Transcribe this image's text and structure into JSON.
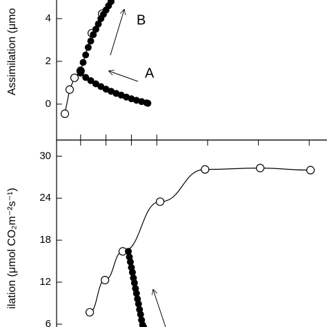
{
  "chart_data": [
    {
      "type": "line",
      "ylabel": "Assimilation (μmo",
      "xlim": [
        0,
        10.7
      ],
      "xticks": [
        1,
        2,
        3,
        4
      ],
      "ylim": [
        -1.68,
        4.87
      ],
      "yticks": [
        0,
        2,
        4
      ],
      "annotations": [
        "B",
        "A"
      ],
      "series": [
        {
          "marker": "open",
          "line": true,
          "color": "#000",
          "x": [
            0.38,
            0.57,
            0.76,
            1.0,
            1.44,
            1.85
          ],
          "values": [
            -0.45,
            0.68,
            1.23,
            1.55,
            3.32,
            4.23
          ]
        },
        {
          "marker": "filled",
          "line": false,
          "color": "#000",
          "x": [
            1.0,
            1.1,
            1.2,
            1.3,
            1.4,
            1.5,
            1.6,
            1.7,
            1.8,
            1.9,
            2.0,
            2.1,
            2.2
          ],
          "values": [
            1.6,
            1.95,
            2.3,
            2.65,
            2.95,
            3.25,
            3.5,
            3.75,
            4.0,
            4.2,
            4.4,
            4.6,
            4.8
          ]
        },
        {
          "marker": "filled",
          "line": false,
          "color": "#000",
          "x": [
            1.0,
            1.2,
            1.4,
            1.6,
            1.8,
            2.0,
            2.2,
            2.4,
            2.6,
            2.8,
            3.0,
            3.2,
            3.4,
            3.6,
            3.65
          ],
          "values": [
            1.45,
            1.25,
            1.1,
            0.95,
            0.82,
            0.7,
            0.6,
            0.5,
            0.42,
            0.33,
            0.25,
            0.18,
            0.12,
            0.06,
            0.04
          ]
        }
      ]
    },
    {
      "type": "line",
      "ylabel": "ilation (μmol CO₂m⁻²s⁻¹)",
      "xlim": [
        0,
        10.7
      ],
      "xticks": [
        1,
        2,
        3,
        4,
        6,
        8,
        10
      ],
      "ylim": [
        5.6,
        32.3
      ],
      "yticks": [
        6,
        12,
        18,
        24,
        30
      ],
      "series": [
        {
          "marker": "open",
          "line": true,
          "color": "#000",
          "x": [
            1.36,
            1.96,
            2.66,
            4.13,
            5.9,
            8.07,
            10.05
          ],
          "values": [
            7.7,
            12.3,
            16.4,
            23.5,
            28.1,
            28.3,
            28.0
          ]
        },
        {
          "marker": "filled",
          "line": false,
          "color": "#000",
          "x": [
            2.88,
            2.92,
            2.96,
            3.0,
            3.04,
            3.08,
            3.12,
            3.16,
            3.2,
            3.24,
            3.28,
            3.32,
            3.36,
            3.4,
            3.44,
            3.48
          ],
          "values": [
            16.4,
            15.6,
            14.9,
            14.1,
            13.4,
            12.6,
            11.9,
            11.1,
            10.4,
            9.6,
            8.9,
            8.1,
            7.4,
            6.6,
            5.9,
            5.6
          ]
        }
      ]
    }
  ]
}
